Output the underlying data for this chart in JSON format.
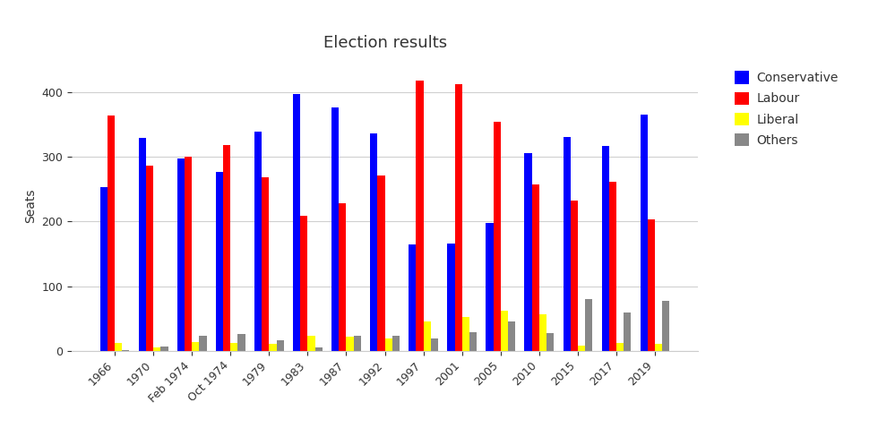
{
  "title": "Election results",
  "ylabel": "Seats",
  "categories": [
    "1966",
    "1970",
    "Feb 1974",
    "Oct 1974",
    "1979",
    "1983",
    "1987",
    "1992",
    "1997",
    "2001",
    "2005",
    "2010",
    "2015",
    "2017",
    "2019"
  ],
  "conservative": [
    253,
    330,
    297,
    277,
    339,
    397,
    376,
    336,
    165,
    166,
    198,
    306,
    331,
    317,
    365
  ],
  "labour": [
    364,
    287,
    301,
    319,
    268,
    209,
    229,
    271,
    418,
    412,
    355,
    258,
    232,
    262,
    203
  ],
  "liberal": [
    12,
    6,
    14,
    13,
    11,
    23,
    22,
    20,
    46,
    52,
    62,
    57,
    8,
    12,
    11
  ],
  "others": [
    1,
    7,
    23,
    26,
    16,
    6,
    23,
    24,
    20,
    29,
    46,
    28,
    80,
    59,
    78
  ],
  "colors": {
    "conservative": "#0000ff",
    "labour": "#ff0000",
    "liberal": "#ffff00",
    "others": "#888888"
  },
  "ylim": [
    0,
    450
  ],
  "yticks": [
    0,
    100,
    200,
    300,
    400
  ],
  "background_color": "#ffffff",
  "grid_color": "#d0d0d0",
  "title_fontsize": 13,
  "axis_label_fontsize": 10,
  "tick_fontsize": 9,
  "legend_fontsize": 10,
  "bar_width": 0.19,
  "legend_labels": [
    "Conservative",
    "Labour",
    "Liberal",
    "Others"
  ]
}
